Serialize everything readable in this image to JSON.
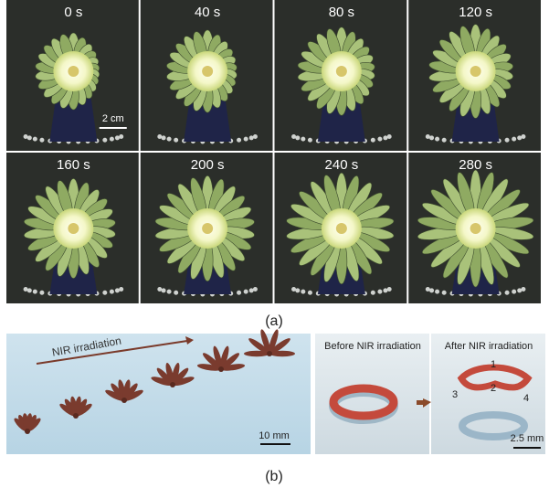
{
  "panel_a": {
    "frames": [
      "0 s",
      "40 s",
      "80 s",
      "120 s",
      "160 s",
      "200 s",
      "240 s",
      "280 s"
    ],
    "scale_bar": "2 cm",
    "label": "(a)"
  },
  "panel_b": {
    "arrow_label": "NIR irradiation",
    "scale_bar_left": "10 mm",
    "before_title": "Before NIR irradiation",
    "after_title": "After NIR irradiation",
    "points": [
      "1",
      "2",
      "3",
      "4"
    ],
    "scale_bar_right": "2.5 mm",
    "label": "(b)"
  }
}
